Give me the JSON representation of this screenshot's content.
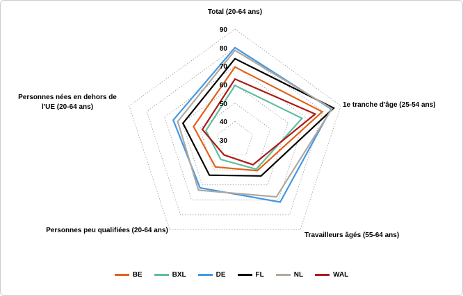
{
  "chart_data": {
    "type": "radar",
    "axes": [
      "Total (20-64 ans)",
      "1e tranche d'âge (25-54 ans)",
      "Travailleurs âgés (55-64 ans)",
      "Personnes peu qualifiées (20-64 ans)",
      "Personnes nées en dehors de l'UE (20-64 ans)"
    ],
    "value_axis": {
      "min": 30,
      "max": 90,
      "major_unit": 10,
      "tick_labels": [
        "90",
        "80",
        "70",
        "60",
        "50",
        "40",
        "30"
      ]
    },
    "grid_values": [
      40,
      50,
      60,
      70,
      80,
      90
    ],
    "grid_style": "dotted",
    "legend_position": "bottom",
    "series": [
      {
        "name": "BE",
        "color": "#E2621B",
        "values": [
          69.5,
          79.5,
          50.5,
          48,
          53.5
        ]
      },
      {
        "name": "BXL",
        "color": "#5FBD9C",
        "values": [
          59.5,
          68,
          49.5,
          43,
          46.5
        ]
      },
      {
        "name": "DE",
        "color": "#4498E4",
        "values": [
          80,
          84.5,
          71.5,
          62,
          65
        ]
      },
      {
        "name": "FL",
        "color": "#000000",
        "values": [
          74,
          86,
          54,
          53.5,
          59.5
        ]
      },
      {
        "name": "NL",
        "color": "#B0A8A0",
        "values": [
          78.5,
          85,
          68,
          63.5,
          62.5
        ]
      },
      {
        "name": "WAL",
        "color": "#AE1917",
        "values": [
          63,
          75.5,
          46.5,
          40,
          48.5
        ]
      }
    ]
  },
  "style": {
    "grid_color": "#999999",
    "background": "#FFFFFF",
    "text_color": "#000000"
  }
}
